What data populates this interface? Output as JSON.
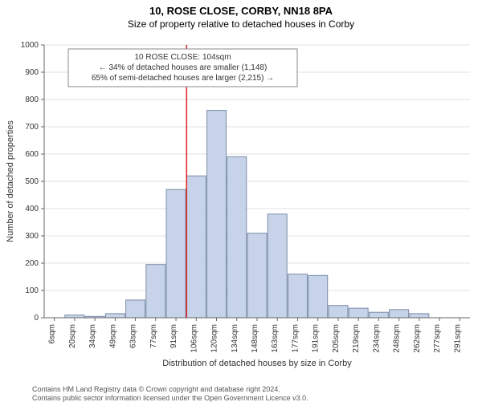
{
  "title_main": "10, ROSE CLOSE, CORBY, NN18 8PA",
  "title_sub": "Size of property relative to detached houses in Corby",
  "chart": {
    "type": "histogram",
    "background_color": "#ffffff",
    "plot_bg": "#ffffff",
    "bar_fill": "#c7d3e8",
    "bar_stroke": "#7a8ca8",
    "grid_color": "#e0e0e0",
    "axis_color": "#666666",
    "ref_line_color": "#dd2222",
    "ylabel": "Number of detached properties",
    "xlabel": "Distribution of detached houses by size in Corby",
    "ylim": [
      0,
      1000
    ],
    "ytick_step": 100,
    "x_categories": [
      "6sqm",
      "20sqm",
      "34sqm",
      "49sqm",
      "63sqm",
      "77sqm",
      "91sqm",
      "106sqm",
      "120sqm",
      "134sqm",
      "148sqm",
      "163sqm",
      "177sqm",
      "191sqm",
      "205sqm",
      "219sqm",
      "234sqm",
      "248sqm",
      "262sqm",
      "277sqm",
      "291sqm"
    ],
    "values": [
      0,
      10,
      5,
      15,
      65,
      195,
      470,
      520,
      760,
      590,
      310,
      380,
      160,
      155,
      45,
      35,
      20,
      30,
      15,
      0,
      0
    ],
    "ref_x_index": 7,
    "annotation": {
      "lines": [
        "10 ROSE CLOSE: 104sqm",
        "← 34% of detached houses are smaller (1,148)",
        "65% of semi-detached houses are larger (2,215) →"
      ],
      "border_color": "#888888",
      "fontsize": 10
    },
    "label_fontsize": 11,
    "tick_fontsize": 10,
    "bar_width": 0.95
  },
  "footer": {
    "line1": "Contains HM Land Registry data © Crown copyright and database right 2024.",
    "line2": "Contains public sector information licensed under the Open Government Licence v3.0."
  }
}
